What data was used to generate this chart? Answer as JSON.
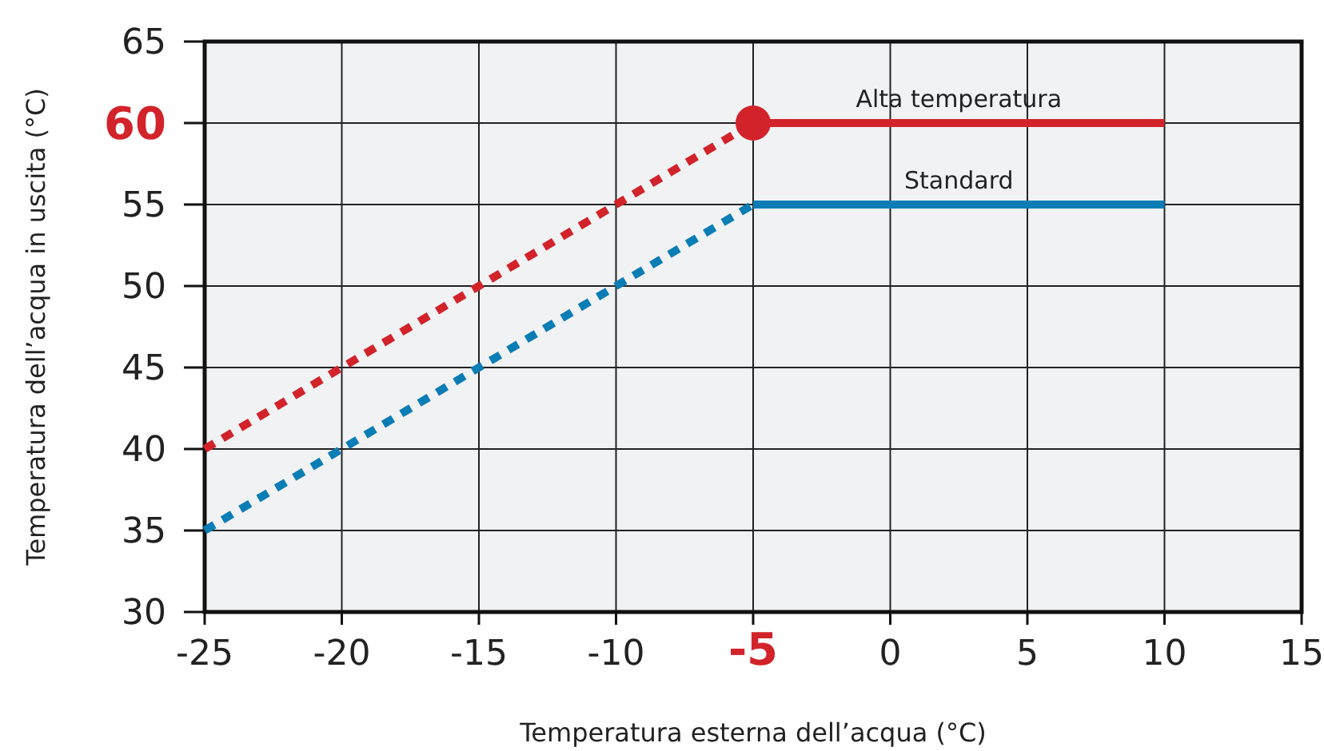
{
  "chart_data": {
    "type": "line",
    "xlabel": "Temperatura esterna dell’acqua (°C)",
    "ylabel": "Temperatura dell’acqua in uscita (°C)",
    "xlim": [
      -25,
      15
    ],
    "xticks": [
      -25,
      -20,
      -15,
      -10,
      -5,
      0,
      5,
      10,
      15
    ],
    "ylim": [
      30,
      65
    ],
    "yticks": [
      30,
      35,
      40,
      45,
      50,
      55,
      60,
      65
    ],
    "grid": true,
    "legend": false,
    "series": [
      {
        "color": "#d2232a",
        "x": [
          -25,
          -5
        ],
        "values": [
          40,
          60
        ],
        "line_style": "dashed"
      },
      {
        "name": "Alta temperatura",
        "color": "#d2232a",
        "x": [
          -5,
          10
        ],
        "values": [
          60,
          60
        ],
        "line_style": "solid"
      },
      {
        "color": "#0b7db5",
        "x": [
          -25,
          -5
        ],
        "values": [
          35,
          55
        ],
        "line_style": "dashed"
      },
      {
        "name": "Standard",
        "color": "#0b7db5",
        "x": [
          -5,
          10
        ],
        "values": [
          55,
          55
        ],
        "line_style": "solid"
      },
      {
        "type": "scatter",
        "color": "#d2232a",
        "x": [
          -5
        ],
        "values": [
          60
        ],
        "marker": "circle"
      }
    ]
  }
}
